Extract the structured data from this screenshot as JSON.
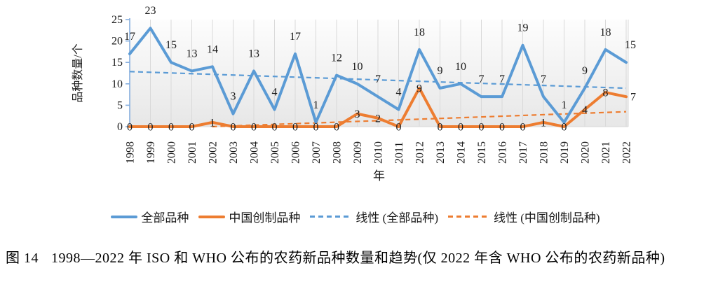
{
  "figure_caption": {
    "prefix": "图 14",
    "text": "1998—2022 年 ISO 和 WHO 公布的农药新品种数量和趋势(仅 2022 年含 WHO 公布的农药新品种)"
  },
  "chart_data": {
    "type": "line",
    "title": "",
    "xlabel": "年",
    "ylabel": "品种数量/个",
    "ylim": [
      0,
      25
    ],
    "yticks": [
      0,
      5,
      10,
      15,
      20,
      25
    ],
    "grid": "vertical-only",
    "legend_position": "bottom",
    "plot_background": {
      "top": "#fdfdfd",
      "bottom": "#e7e7e7"
    },
    "x_categories": [
      "1998",
      "1999",
      "2000",
      "2001",
      "2002",
      "2003",
      "2004",
      "2005",
      "2006",
      "2007",
      "2008",
      "2009",
      "2010",
      "2011",
      "2012",
      "2013",
      "2014",
      "2015",
      "2016",
      "2017",
      "2018",
      "2019",
      "2020",
      "2021",
      "2022"
    ],
    "series": [
      {
        "name": "全部品种",
        "type": "line",
        "style": "solid",
        "color": "#5B9BD5",
        "data_labels": "above",
        "values": [
          17,
          23,
          15,
          13,
          14,
          3,
          13,
          4,
          17,
          1,
          12,
          10,
          7,
          4,
          18,
          9,
          10,
          7,
          7,
          19,
          7,
          1,
          9,
          18,
          15
        ]
      },
      {
        "name": "中国创制品种",
        "type": "line",
        "style": "solid",
        "color": "#ED7D31",
        "data_labels": "center",
        "values": [
          0,
          0,
          0,
          0,
          1,
          0,
          0,
          0,
          0,
          0,
          0,
          3,
          2,
          0,
          9,
          0,
          0,
          0,
          0,
          0,
          1,
          0,
          4,
          8,
          7
        ]
      },
      {
        "name": "线性 (全部品种)",
        "type": "trendline",
        "style": "dashed",
        "color": "#5B9BD5",
        "trend": {
          "start_index": 0,
          "start_value": 12.86,
          "end_index": 24,
          "end_value": 8.98
        }
      },
      {
        "name": "线性 (中国创制品种)",
        "type": "trendline",
        "style": "dashed",
        "color": "#ED7D31",
        "trend": {
          "start_index": 3.98,
          "start_value": 0,
          "end_index": 24,
          "end_value": 3.49
        }
      }
    ]
  }
}
